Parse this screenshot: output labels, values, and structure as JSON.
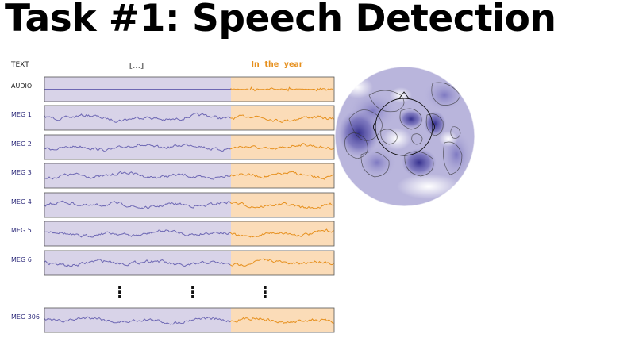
{
  "title": "Task #1: Speech Detection",
  "text_row": {
    "label": "TEXT",
    "context_text": "[...]",
    "speech_text": "In  the  year"
  },
  "channels": [
    "AUDIO",
    "MEG 1",
    "MEG 2",
    "MEG 3",
    "MEG 4",
    "MEG 5",
    "MEG 6",
    "MEG 306"
  ],
  "ellipsis": [
    "⋮",
    "⋮",
    "⋮"
  ],
  "colors": {
    "context_bg": "#d8d3e8",
    "speech_bg": "#fbdcb8",
    "context_trace": "#6e68b4",
    "speech_trace": "#e6901e",
    "speech_text": "#e6901e",
    "label": "#2d2a7a",
    "border": "#555555"
  },
  "topomap": {
    "colormap": [
      "#ffffff",
      "#3f3a9b"
    ],
    "contours": true
  }
}
